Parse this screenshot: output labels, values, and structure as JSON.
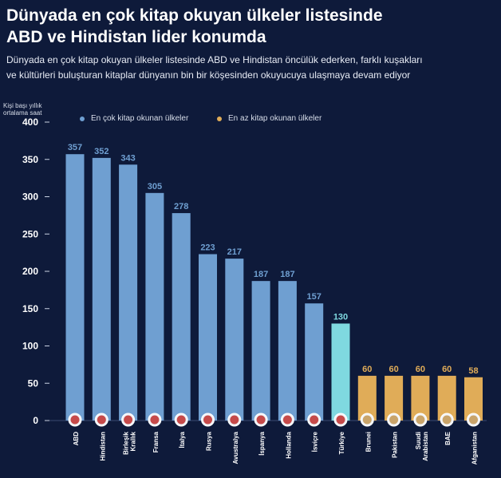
{
  "title_line1": "Dünyada en çok kitap okuyan ülkeler listesinde",
  "title_line2": "ABD ve Hindistan lider konumda",
  "subtitle_line1": "Dünyada en çok kitap okuyan ülkeler listesinde ABD ve Hindistan öncülük ederken, farklı kuşakları",
  "subtitle_line2": "ve kültürleri buluşturan kitaplar dünyanın bin bir köşesinden okuyucuya ulaşmaya devam ediyor",
  "colors": {
    "background": "#0e1a3a",
    "most": "#6f9fd1",
    "turkey": "#7fd9e0",
    "least": "#e0ac58"
  },
  "chart_data": {
    "type": "bar",
    "ylabel": "Kişi başı yıllık ortalama saat",
    "ylim": [
      0,
      400
    ],
    "yticks": [
      0,
      50,
      100,
      150,
      200,
      250,
      300,
      350,
      400
    ],
    "grid": false,
    "legend_position": "top",
    "legend": [
      {
        "label": "En çok kitap okunan ülkeler",
        "color": "#6f9fd1"
      },
      {
        "label": "En az kitap okunan ülkeler",
        "color": "#e0ac58"
      }
    ],
    "categories": [
      "ABD",
      "Hindistan",
      "Birleşik Krallık",
      "Fransa",
      "İtalya",
      "Rusya",
      "Avustralya",
      "İspanya",
      "Hollanda",
      "İsviçre",
      "Türkiye",
      "Brunei",
      "Pakistan",
      "Suudi Arabistan",
      "BAE",
      "Afganistan"
    ],
    "category_lines": [
      [
        "ABD"
      ],
      [
        "Hindistan"
      ],
      [
        "Birleşik",
        "Krallık"
      ],
      [
        "Fransa"
      ],
      [
        "İtalya"
      ],
      [
        "Rusya"
      ],
      [
        "Avustralya"
      ],
      [
        "İspanya"
      ],
      [
        "Hollanda"
      ],
      [
        "İsviçre"
      ],
      [
        "Türkiye"
      ],
      [
        "Brunei"
      ],
      [
        "Pakistan"
      ],
      [
        "Suudi",
        "Arabistan"
      ],
      [
        "BAE"
      ],
      [
        "Afganistan"
      ]
    ],
    "values": [
      357,
      352,
      343,
      305,
      278,
      223,
      217,
      187,
      187,
      157,
      130,
      60,
      60,
      60,
      60,
      58
    ],
    "groups": [
      "most",
      "most",
      "most",
      "most",
      "most",
      "most",
      "most",
      "most",
      "most",
      "most",
      "turkey",
      "least",
      "least",
      "least",
      "least",
      "least"
    ],
    "flag_icons": [
      "flag-usa-icon",
      "flag-india-icon",
      "flag-uk-icon",
      "flag-france-icon",
      "flag-italy-icon",
      "flag-russia-icon",
      "flag-australia-icon",
      "flag-spain-icon",
      "flag-netherlands-icon",
      "flag-switzerland-icon",
      "flag-turkey-icon",
      "flag-brunei-icon",
      "flag-pakistan-icon",
      "flag-saudi-arabia-icon",
      "flag-uae-icon",
      "flag-afghanistan-icon"
    ]
  }
}
